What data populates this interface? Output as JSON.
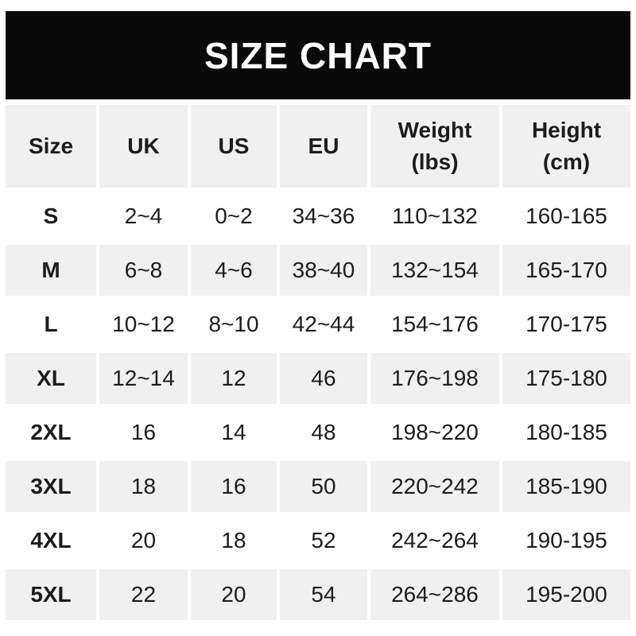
{
  "banner": {
    "title": "SIZE CHART"
  },
  "colors": {
    "banner_bg": "#0a0a0a",
    "banner_text": "#ffffff",
    "stripe": "#f0f0f1",
    "row_alt": "#ffffff",
    "text": "#1c1c1e"
  },
  "chart_data": {
    "type": "table",
    "title": "SIZE CHART",
    "columns": [
      "Size",
      "UK",
      "US",
      "EU",
      "Weight (lbs)",
      "Height (cm)"
    ],
    "header_display": [
      "Size",
      "UK",
      "US",
      "EU",
      "Weight\n(lbs)",
      "Height\n(cm)"
    ],
    "rows": [
      [
        "S",
        "2~4",
        "0~2",
        "34~36",
        "110~132",
        "160-165"
      ],
      [
        "M",
        "6~8",
        "4~6",
        "38~40",
        "132~154",
        "165-170"
      ],
      [
        "L",
        "10~12",
        "8~10",
        "42~44",
        "154~176",
        "170-175"
      ],
      [
        "XL",
        "12~14",
        "12",
        "46",
        "176~198",
        "175-180"
      ],
      [
        "2XL",
        "16",
        "14",
        "48",
        "198~220",
        "180-185"
      ],
      [
        "3XL",
        "18",
        "16",
        "50",
        "220~242",
        "185-190"
      ],
      [
        "4XL",
        "20",
        "18",
        "52",
        "242~264",
        "190-195"
      ],
      [
        "5XL",
        "22",
        "20",
        "54",
        "264~286",
        "195-200"
      ]
    ],
    "striped_rows": [
      "header",
      "M",
      "XL",
      "3XL",
      "5XL"
    ],
    "layout": {
      "grid": "off",
      "stripes": "alternating",
      "header_position": "top"
    }
  }
}
